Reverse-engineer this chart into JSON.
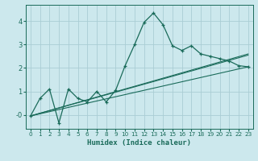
{
  "xlabel": "Humidex (Indice chaleur)",
  "background_color": "#cce8ed",
  "grid_color": "#aacdd4",
  "line_color": "#1a6b5a",
  "xlim": [
    -0.5,
    23.5
  ],
  "ylim": [
    -0.6,
    4.7
  ],
  "xticks": [
    0,
    1,
    2,
    3,
    4,
    5,
    6,
    7,
    8,
    9,
    10,
    11,
    12,
    13,
    14,
    15,
    16,
    17,
    18,
    19,
    20,
    21,
    22,
    23
  ],
  "yticks": [
    0,
    1,
    2,
    3,
    4
  ],
  "ytick_labels": [
    "-0",
    "1",
    "2",
    "3",
    "4"
  ],
  "line1_x": [
    0,
    1,
    2,
    3,
    4,
    5,
    6,
    7,
    8,
    9,
    10,
    11,
    12,
    13,
    14,
    15,
    16,
    17,
    18,
    19,
    20,
    21,
    22,
    23
  ],
  "line1_y": [
    -0.05,
    0.7,
    1.1,
    -0.35,
    1.1,
    0.7,
    0.55,
    1.0,
    0.55,
    1.05,
    2.1,
    3.0,
    3.95,
    4.35,
    3.85,
    2.95,
    2.75,
    2.95,
    2.6,
    2.5,
    2.4,
    2.3,
    2.1,
    2.05
  ],
  "line2_x": [
    0,
    23
  ],
  "line2_y": [
    -0.05,
    2.6
  ],
  "line3_x": [
    0,
    23
  ],
  "line3_y": [
    -0.05,
    2.55
  ],
  "line4_x": [
    0,
    23
  ],
  "line4_y": [
    -0.05,
    2.05
  ]
}
